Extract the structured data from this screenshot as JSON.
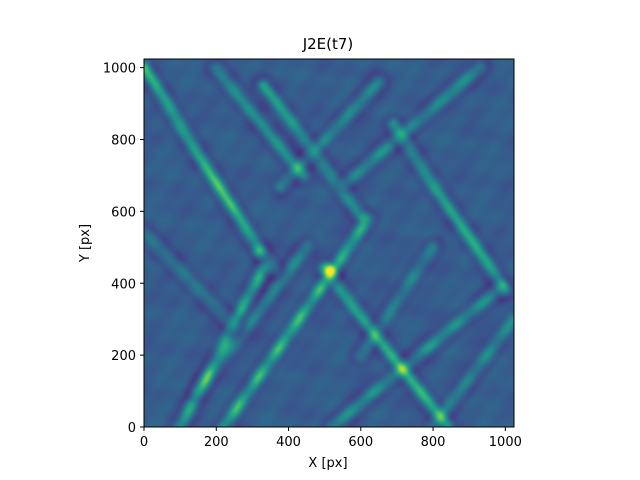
{
  "chart_data": {
    "type": "heatmap",
    "title": "J2E(t7)",
    "xlabel": "X [px]",
    "ylabel": "Y [px]",
    "xlim": [
      0,
      1024
    ],
    "ylim": [
      0,
      1024
    ],
    "xticks": [
      0,
      200,
      400,
      600,
      800,
      1000
    ],
    "yticks": [
      0,
      200,
      400,
      600,
      800,
      1000
    ],
    "colormap": "viridis",
    "colors": {
      "low": "#440154",
      "mid": "#21918c",
      "high": "#fde725"
    },
    "ridges": [
      {
        "from": [
          0,
          1000
        ],
        "to": [
          320,
          490
        ],
        "intensity": 0.78
      },
      {
        "from": [
          320,
          490
        ],
        "to": [
          360,
          440
        ],
        "intensity": 0.55
      },
      {
        "from": [
          100,
          0
        ],
        "to": [
          330,
          440
        ],
        "intensity": 0.62
      },
      {
        "from": [
          220,
          0
        ],
        "to": [
          520,
          430
        ],
        "intensity": 0.8
      },
      {
        "from": [
          520,
          430
        ],
        "to": [
          620,
          580
        ],
        "intensity": 0.72
      },
      {
        "from": [
          500,
          440
        ],
        "to": [
          840,
          0
        ],
        "intensity": 0.68
      },
      {
        "from": [
          330,
          950
        ],
        "to": [
          600,
          590
        ],
        "intensity": 0.55
      },
      {
        "from": [
          690,
          840
        ],
        "to": [
          1000,
          380
        ],
        "intensity": 0.6
      },
      {
        "from": [
          520,
          0
        ],
        "to": [
          990,
          390
        ],
        "intensity": 0.45
      },
      {
        "from": [
          800,
          0
        ],
        "to": [
          1024,
          300
        ],
        "intensity": 0.4
      },
      {
        "from": [
          200,
          1000
        ],
        "to": [
          440,
          700
        ],
        "intensity": 0.42
      },
      {
        "from": [
          560,
          680
        ],
        "to": [
          930,
          1000
        ],
        "intensity": 0.4
      },
      {
        "from": [
          380,
          670
        ],
        "to": [
          650,
          960
        ],
        "intensity": 0.38
      },
      {
        "from": [
          150,
          100
        ],
        "to": [
          450,
          500
        ],
        "intensity": 0.35
      },
      {
        "from": [
          0,
          540
        ],
        "to": [
          250,
          280
        ],
        "intensity": 0.3
      },
      {
        "from": [
          600,
          200
        ],
        "to": [
          800,
          500
        ],
        "intensity": 0.32
      }
    ],
    "peak": {
      "x": 510,
      "y": 440,
      "intensity": 1.0
    }
  }
}
